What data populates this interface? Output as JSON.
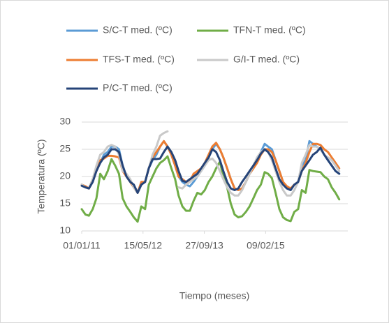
{
  "chart_data": {
    "type": "line",
    "x_label": "Tiempo (meses)",
    "y_label": "Temperatura (ºC)",
    "x": [
      "2011-01-01",
      "2011-02-01",
      "2011-03-01",
      "2011-04-01",
      "2011-05-01",
      "2011-06-01",
      "2011-07-01",
      "2011-08-01",
      "2011-09-01",
      "2011-10-01",
      "2011-11-01",
      "2011-12-01",
      "2012-01-01",
      "2012-02-01",
      "2012-03-01",
      "2012-04-01",
      "2012-05-01",
      "2012-06-01",
      "2012-07-01",
      "2012-08-01",
      "2012-09-01",
      "2012-10-01",
      "2012-11-01",
      "2012-12-01",
      "2013-01-01",
      "2013-02-01",
      "2013-03-01",
      "2013-04-01",
      "2013-05-01",
      "2013-06-01",
      "2013-07-01",
      "2013-08-01",
      "2013-09-01",
      "2013-10-01",
      "2013-11-01",
      "2013-12-01",
      "2014-01-01",
      "2014-02-01",
      "2014-03-01",
      "2014-04-01",
      "2014-05-01",
      "2014-06-01",
      "2014-07-01",
      "2014-08-01",
      "2014-09-01",
      "2014-10-01",
      "2014-11-01",
      "2014-12-01",
      "2015-01-01",
      "2015-02-01",
      "2015-03-01",
      "2015-04-01",
      "2015-05-01",
      "2015-06-01",
      "2015-07-01",
      "2015-08-01",
      "2015-09-01",
      "2015-10-01",
      "2015-11-01",
      "2015-12-01",
      "2016-01-01",
      "2016-02-01",
      "2016-03-01",
      "2016-04-01",
      "2016-05-01",
      "2016-06-01",
      "2016-07-01",
      "2016-08-01",
      "2016-09-01",
      "2016-10-01"
    ],
    "series": [
      {
        "name": "S/C-T med. (ºC)",
        "color": "#5b9bd5",
        "values": [
          18.5,
          18.0,
          17.8,
          19.5,
          21.5,
          22.5,
          24.0,
          24.5,
          25.5,
          25.5,
          25.0,
          22.0,
          20.0,
          19.0,
          18.0,
          17.0,
          18.5,
          19.0,
          21.5,
          23.0,
          24.0,
          25.5,
          26.5,
          25.5,
          24.0,
          22.0,
          20.0,
          19.0,
          18.5,
          18.2,
          19.0,
          20.0,
          21.0,
          22.0,
          23.5,
          25.0,
          26.0,
          25.0,
          23.5,
          21.5,
          19.5,
          17.8,
          17.5,
          17.8,
          19.0,
          20.5,
          21.5,
          23.0,
          24.5,
          26.0,
          25.5,
          25.0,
          23.0,
          21.0,
          19.0,
          18.0,
          17.8,
          18.5,
          19.0,
          22.0,
          23.0,
          26.5,
          26.0,
          25.5,
          25.0,
          24.0,
          23.0,
          22.0,
          21.0,
          20.5
        ]
      },
      {
        "name": "TFN-T med. (ºC)",
        "color": "#70ad47",
        "values": [
          14,
          13,
          12.8,
          14,
          16,
          20.5,
          19.5,
          21,
          23.2,
          22,
          20.5,
          16,
          14.5,
          13.5,
          12.5,
          11.7,
          14.5,
          14,
          18.5,
          20,
          21.5,
          22.5,
          23,
          23.7,
          21.5,
          19.5,
          16.5,
          14.5,
          13.7,
          13.7,
          15.5,
          17,
          16.7,
          17.5,
          19,
          20,
          21.5,
          22.7,
          20,
          18,
          15,
          13,
          12.5,
          12.7,
          13.5,
          14.5,
          16,
          17.5,
          18.5,
          20.8,
          20.5,
          19.7,
          17,
          14,
          12.5,
          12,
          11.8,
          13.5,
          14,
          17.5,
          17,
          21.2,
          21,
          20.9,
          20.8,
          20,
          19.5,
          18,
          17,
          15.8
        ]
      },
      {
        "name": "TFS-T med. (ºC)",
        "color": "#ed7d31",
        "values": [
          18.5,
          18.2,
          17.8,
          19.5,
          21,
          23,
          23.3,
          23.8,
          23.8,
          23.7,
          23.5,
          21,
          20,
          19,
          18,
          17,
          19,
          19,
          21.5,
          23.5,
          24.5,
          25.5,
          26.5,
          25.5,
          24,
          22,
          20,
          19.5,
          19,
          19,
          20.5,
          21,
          21.5,
          22.5,
          24,
          25.5,
          26.2,
          25,
          23.5,
          21.5,
          19.5,
          17.8,
          17.5,
          17.8,
          19,
          20.5,
          21.5,
          22.5,
          24,
          25,
          25,
          24.5,
          23,
          21,
          19,
          18.2,
          17.8,
          18.5,
          19,
          21,
          22.5,
          24.5,
          26,
          26,
          25.8,
          25,
          24.5,
          23.5,
          22.5,
          21.5
        ]
      },
      {
        "name": "G/I-T med. (ºC)",
        "color": "#c9c9c9",
        "values": [
          18.5,
          18,
          17.8,
          19.5,
          22,
          24,
          24.5,
          25.5,
          25.8,
          25.5,
          24,
          21,
          20.5,
          19.5,
          18,
          17,
          18.5,
          19,
          21.5,
          24,
          25.5,
          27.5,
          28,
          28.3,
          null,
          null,
          18,
          17.8,
          18.5,
          19,
          19.5,
          20,
          21,
          22,
          23,
          23.3,
          22.5,
          21,
          19.5,
          18,
          17,
          16.5,
          16.5,
          17.5,
          19,
          20.5,
          22,
          23.5,
          24.5,
          25,
          24.5,
          23,
          21,
          19,
          17.5,
          16.5,
          16.5,
          17.5,
          19,
          22.5,
          24,
          25.8,
          25.5,
          25.5,
          25,
          24,
          23.5,
          23,
          22,
          21
        ]
      },
      {
        "name": "P/C-T med. (ºC)",
        "color": "#264478",
        "values": [
          18.3,
          18,
          17.8,
          19,
          21,
          22.5,
          23.5,
          24,
          25,
          25,
          24.5,
          22,
          20,
          19,
          18.5,
          17,
          18.5,
          19,
          21.5,
          23.2,
          23.2,
          23.3,
          24.5,
          25.5,
          24.5,
          23,
          21,
          19.2,
          19,
          19.5,
          20,
          20.5,
          21.5,
          22.5,
          23.5,
          25,
          24.5,
          23,
          21,
          19,
          17.8,
          17.5,
          17.8,
          19,
          20,
          21,
          22,
          23,
          24.2,
          25,
          24.5,
          23.5,
          21.5,
          19.5,
          18.5,
          17.8,
          17.5,
          18.5,
          19,
          21,
          22,
          23,
          24,
          24.5,
          25.3,
          24,
          23,
          22,
          21,
          20.5
        ]
      }
    ],
    "xlim": [
      "2011-01-01",
      "2016-12-10"
    ],
    "xticks": [
      {
        "value": "2011-01-01",
        "label": "01/01/11"
      },
      {
        "value": "2012-05-15",
        "label": "15/05/12"
      },
      {
        "value": "2013-09-27",
        "label": "27/09/13"
      },
      {
        "value": "2015-02-09",
        "label": "09/02/15"
      }
    ],
    "ylim": [
      10,
      30
    ],
    "yticks": [
      10,
      15,
      20,
      25,
      30
    ],
    "grid": true
  }
}
